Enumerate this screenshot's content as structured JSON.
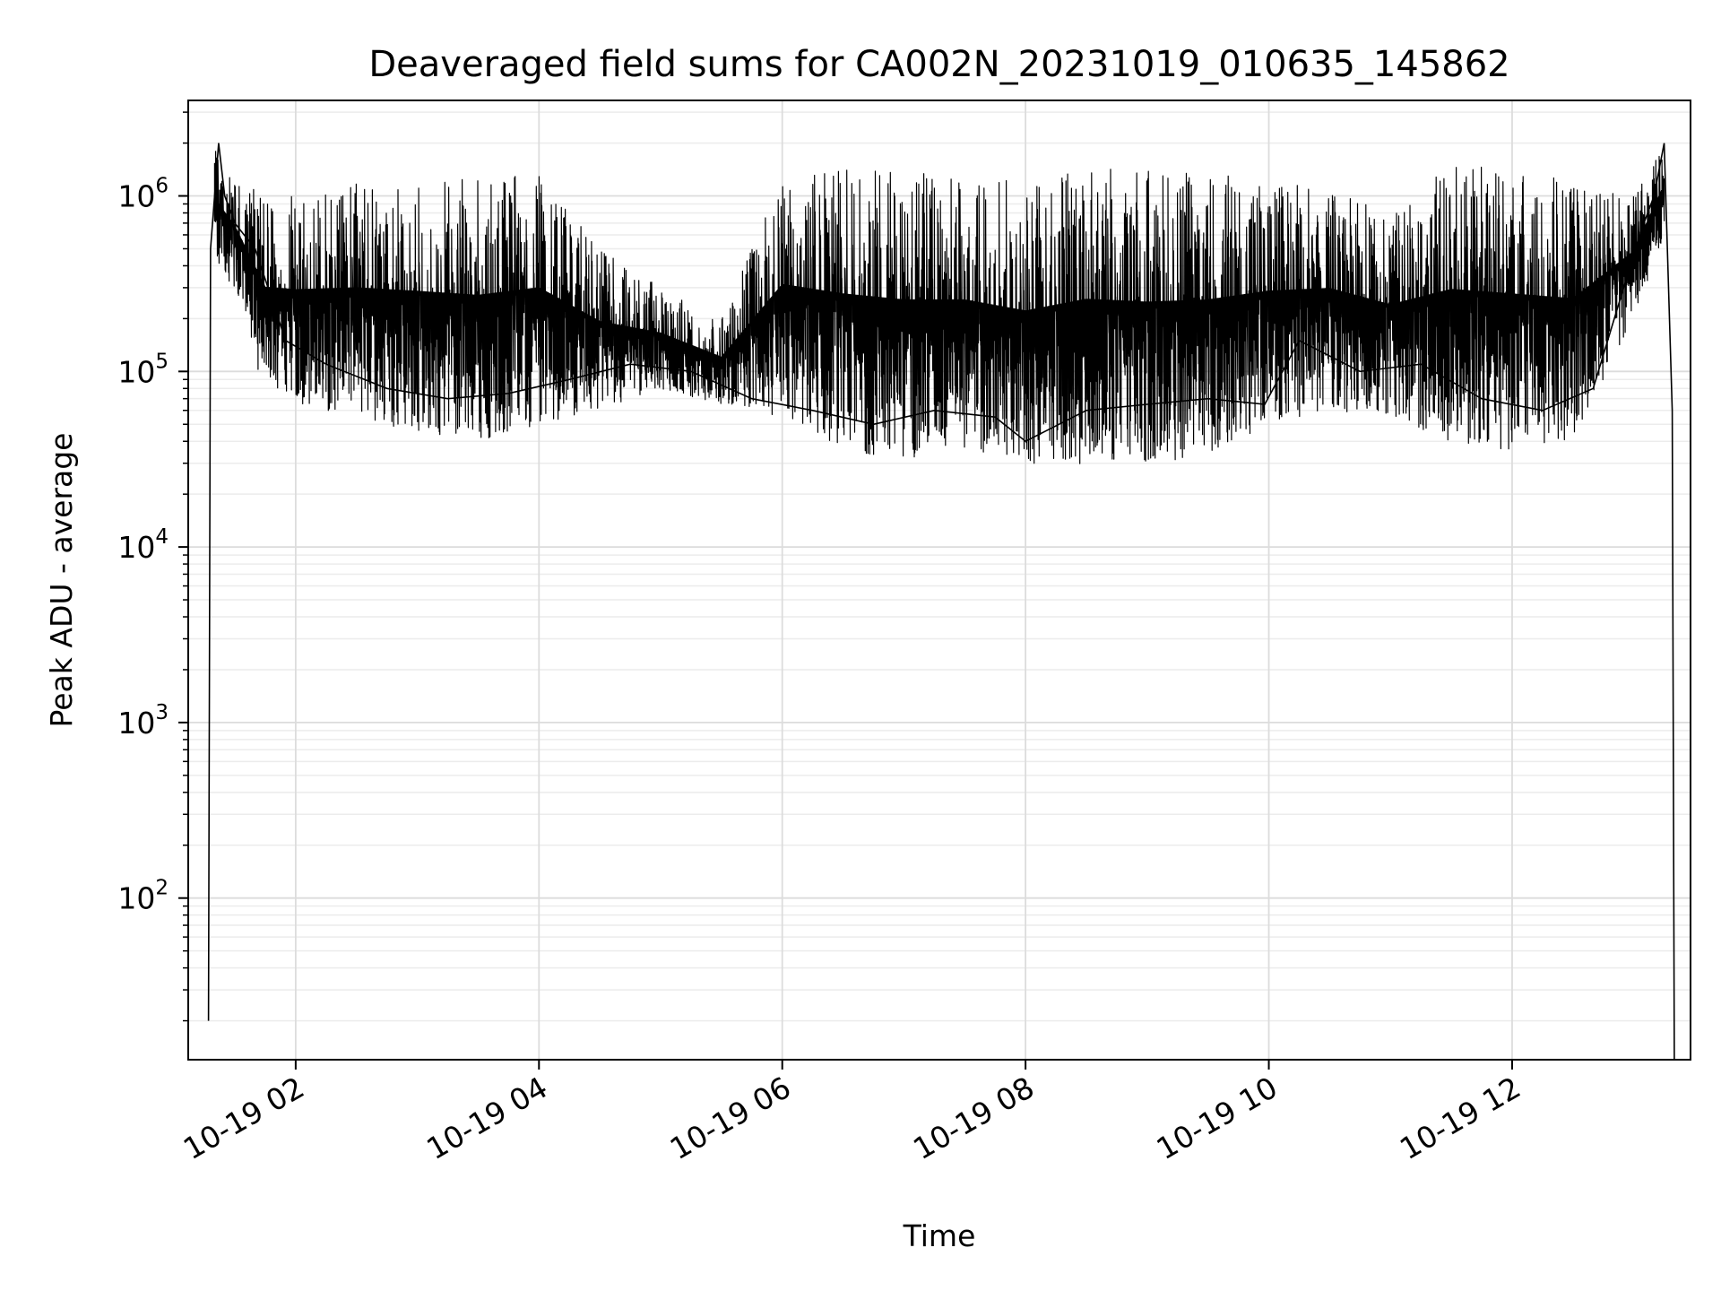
{
  "chart_data": {
    "type": "line",
    "title": "Deaveraged field sums for CA002N_20231019_010635_145862",
    "xlabel": "Time",
    "ylabel": "Peak ADU - average",
    "yscale": "log",
    "ylim": [
      12,
      3500000
    ],
    "xlim": [
      "2023-10-19T01:07",
      "2023-10-19T13:28"
    ],
    "grid": true,
    "x_tick_values": [
      "2023-10-19T02:00",
      "2023-10-19T04:00",
      "2023-10-19T06:00",
      "2023-10-19T08:00",
      "2023-10-19T10:00",
      "2023-10-19T12:00"
    ],
    "x_tick_labels": [
      "10-19 02",
      "10-19 04",
      "10-19 06",
      "10-19 08",
      "10-19 10",
      "10-19 12"
    ],
    "y_tick_values": [
      100,
      1000,
      10000,
      100000,
      1000000
    ],
    "y_tick_labels": [
      {
        "base": "10",
        "exp": "2"
      },
      {
        "base": "10",
        "exp": "3"
      },
      {
        "base": "10",
        "exp": "4"
      },
      {
        "base": "10",
        "exp": "5"
      },
      {
        "base": "10",
        "exp": "6"
      }
    ],
    "series": [
      {
        "color": "#000000",
        "x": [
          "2023-10-19T01:17",
          "2023-10-19T01:18",
          "2023-10-19T01:20",
          "2023-10-19T01:22",
          "2023-10-19T01:25",
          "2023-10-19T01:30",
          "2023-10-19T01:40",
          "2023-10-19T01:55",
          "2023-10-19T02:15",
          "2023-10-19T02:45",
          "2023-10-19T03:15",
          "2023-10-19T03:45",
          "2023-10-19T04:15",
          "2023-10-19T04:45",
          "2023-10-19T05:15",
          "2023-10-19T05:45",
          "2023-10-19T06:15",
          "2023-10-19T06:45",
          "2023-10-19T07:15",
          "2023-10-19T07:45",
          "2023-10-19T08:00",
          "2023-10-19T08:30",
          "2023-10-19T09:00",
          "2023-10-19T09:30",
          "2023-10-19T09:58",
          "2023-10-19T10:15",
          "2023-10-19T10:45",
          "2023-10-19T11:15",
          "2023-10-19T11:45",
          "2023-10-19T12:15",
          "2023-10-19T12:40",
          "2023-10-19T12:55",
          "2023-10-19T13:05",
          "2023-10-19T13:10",
          "2023-10-19T13:15",
          "2023-10-19T13:19",
          "2023-10-19T13:20"
        ],
        "values": [
          20,
          500000,
          1000000,
          2000000,
          1000000,
          700000,
          500000,
          150000,
          110000,
          80000,
          70000,
          75000,
          90000,
          110000,
          100000,
          70000,
          60000,
          50000,
          60000,
          55000,
          40000,
          60000,
          65000,
          70000,
          65000,
          150000,
          100000,
          110000,
          70000,
          60000,
          80000,
          300000,
          700000,
          1000000,
          2000000,
          60000,
          12
        ]
      }
    ],
    "envelope": {
      "times": [
        "2023-10-19T01:20",
        "2023-10-19T01:30",
        "2023-10-19T01:45",
        "2023-10-19T02:00",
        "2023-10-19T02:30",
        "2023-10-19T03:00",
        "2023-10-19T03:30",
        "2023-10-19T04:00",
        "2023-10-19T04:30",
        "2023-10-19T05:00",
        "2023-10-19T05:30",
        "2023-10-19T06:00",
        "2023-10-19T06:30",
        "2023-10-19T07:00",
        "2023-10-19T07:30",
        "2023-10-19T08:00",
        "2023-10-19T08:30",
        "2023-10-19T09:00",
        "2023-10-19T09:30",
        "2023-10-19T10:00",
        "2023-10-19T10:30",
        "2023-10-19T11:00",
        "2023-10-19T11:30",
        "2023-10-19T12:00",
        "2023-10-19T12:30",
        "2023-10-19T13:00",
        "2023-10-19T13:15"
      ],
      "upper": [
        2000000,
        1300000,
        1000000,
        1000000,
        1200000,
        1300000,
        1300000,
        1300000,
        500000,
        300000,
        200000,
        1300000,
        1500000,
        1400000,
        1300000,
        1200000,
        1500000,
        1400000,
        1400000,
        1200000,
        1100000,
        800000,
        1500000,
        1500000,
        1200000,
        1000000,
        2000000
      ],
      "lower": [
        400000,
        300000,
        70000,
        65000,
        55000,
        45000,
        40000,
        50000,
        60000,
        80000,
        65000,
        55000,
        35000,
        32000,
        35000,
        28000,
        30000,
        30000,
        32000,
        50000,
        60000,
        55000,
        40000,
        35000,
        40000,
        200000,
        600000
      ]
    }
  }
}
